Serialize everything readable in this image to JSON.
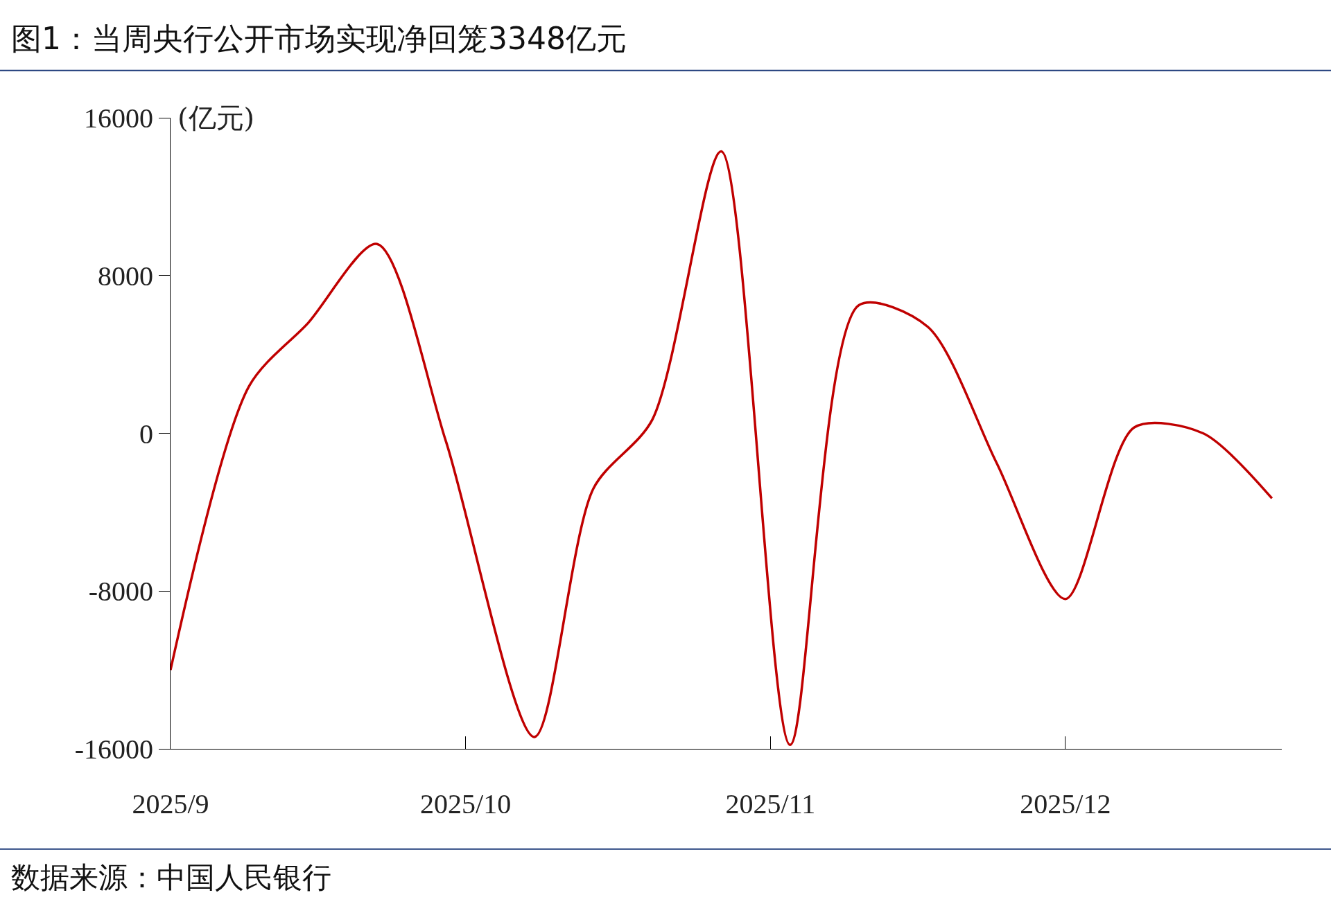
{
  "chart_data": {
    "type": "line",
    "title": "图1：当周央行公开市场实现净回笼3348亿元",
    "ylabel": "(亿元)",
    "annotations": [
      "数据来源：中国人民银行"
    ],
    "x": [
      "2025-09-01",
      "2025-09-09",
      "2025-09-15",
      "2025-09-22",
      "2025-09-29",
      "2025-10-08",
      "2025-10-14",
      "2025-10-20",
      "2025-10-27",
      "2025-11-03",
      "2025-11-10",
      "2025-11-17",
      "2025-11-24",
      "2025-12-01",
      "2025-12-08",
      "2025-12-15",
      "2025-12-22"
    ],
    "series": [
      {
        "color": "#c00000",
        "values": [
          -12000,
          2400,
          5600,
          9600,
          -400,
          -15400,
          -2800,
          700,
          14300,
          -15800,
          6500,
          5400,
          -1500,
          -8400,
          300,
          0,
          -3300
        ]
      }
    ],
    "xlim": [
      "2025-09-01",
      "2025-12-23"
    ],
    "xticks": [
      {
        "value": "2025-09-01",
        "label": "2025/9"
      },
      {
        "value": "2025-10-01",
        "label": "2025/10"
      },
      {
        "value": "2025-11-01",
        "label": "2025/11"
      },
      {
        "value": "2025-12-01",
        "label": "2025/12"
      }
    ],
    "ylim": [
      -16000,
      16000
    ],
    "yticks": [
      16000,
      8000,
      0,
      -8000,
      -16000
    ],
    "marker": "none",
    "line_style": "solid"
  }
}
